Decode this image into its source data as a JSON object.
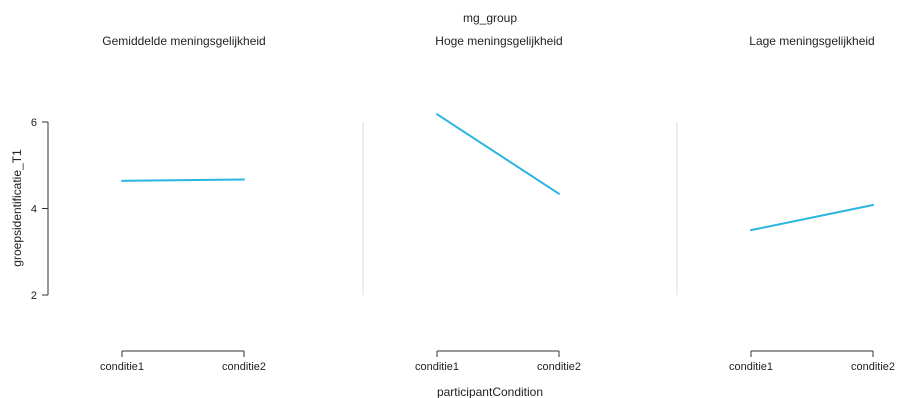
{
  "chart_data": {
    "type": "line",
    "facet_title": "mg_group",
    "xlabel": "participantCondition",
    "ylabel": "groepsidentificatie_T1",
    "categories": [
      "conditie1",
      "conditie2"
    ],
    "ylim": [
      2,
      6
    ],
    "yticks": [
      2,
      4,
      6
    ],
    "line_color": "#2ab4e0",
    "panels": [
      {
        "title": "Gemiddelde meningsgelijkheid",
        "values": [
          4.64,
          4.67
        ]
      },
      {
        "title": "Hoge meningsgelijkheid",
        "values": [
          6.18,
          4.34
        ]
      },
      {
        "title": "Lage meningsgelijkheid",
        "values": [
          3.5,
          4.08
        ]
      }
    ]
  }
}
